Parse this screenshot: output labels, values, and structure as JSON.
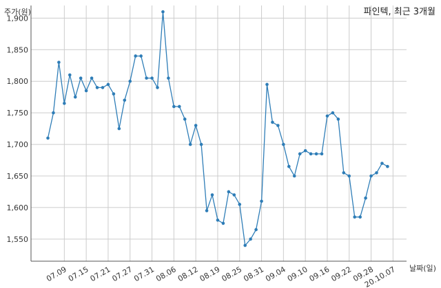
{
  "chart_data": {
    "type": "line",
    "title": "파인텍, 최근 3개월",
    "ylabel": "주가(원)",
    "xlabel": "날짜(일)",
    "ylim": [
      1515,
      1920
    ],
    "yticks": [
      1550,
      1600,
      1650,
      1700,
      1750,
      1800,
      1850,
      1900
    ],
    "ytick_labels": [
      "1,550",
      "1,600",
      "1,650",
      "1,700",
      "1,750",
      "1,800",
      "1,850",
      "1,900"
    ],
    "xtick_labels": [
      "07.09",
      "07.15",
      "07.21",
      "07.27",
      "07.31",
      "08.06",
      "08.12",
      "08.19",
      "08.25",
      "08.31",
      "09.04",
      "09.10",
      "09.16",
      "09.22",
      "09.28",
      "20.10.07"
    ],
    "xtick_index": [
      3,
      7,
      11,
      15,
      19,
      23,
      27,
      31,
      35,
      39,
      43,
      47,
      51,
      55,
      59,
      63
    ],
    "grid": true,
    "line_color": "#2e7db7",
    "series": [
      {
        "values": [
          1710,
          1750,
          1830,
          1765,
          1810,
          1775,
          1805,
          1785,
          1805,
          1790,
          1790,
          1795,
          1780,
          1725,
          1770,
          1800,
          1840,
          1840,
          1805,
          1805,
          1790,
          1910,
          1805,
          1760,
          1760,
          1740,
          1700,
          1730,
          1700,
          1595,
          1620,
          1580,
          1575,
          1625,
          1620,
          1605,
          1540,
          1550,
          1565,
          1610,
          1795,
          1735,
          1730,
          1700,
          1665,
          1650,
          1685,
          1690,
          1685,
          1685,
          1685,
          1745,
          1750,
          1740,
          1655,
          1650,
          1585,
          1585,
          1615,
          1650,
          1655,
          1670,
          1665
        ]
      }
    ]
  }
}
